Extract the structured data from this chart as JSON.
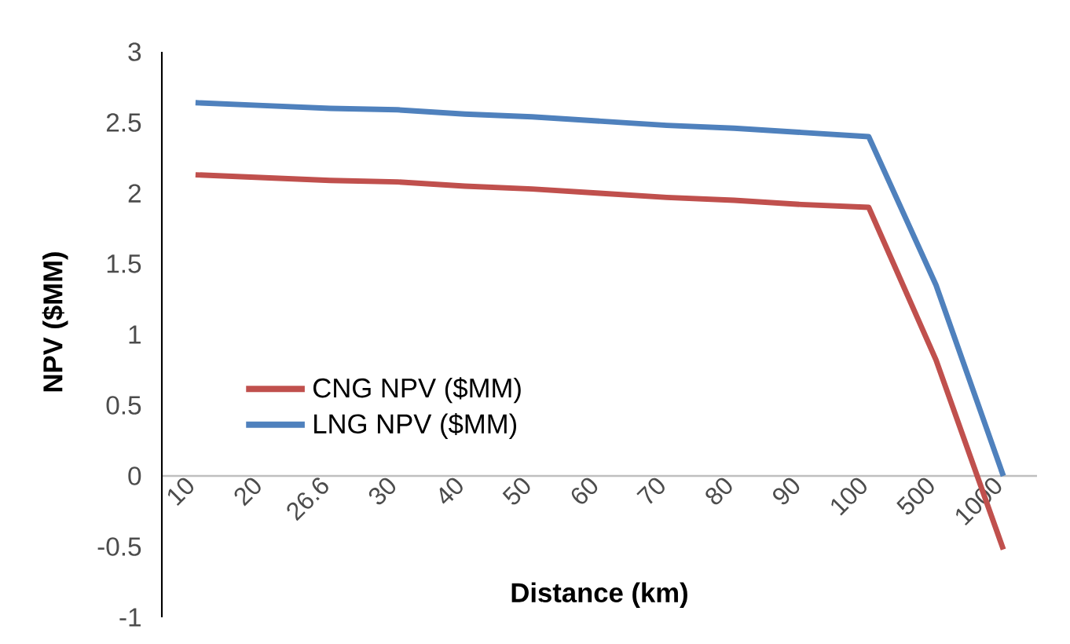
{
  "chart_data": {
    "type": "line",
    "xlabel": "Distance (km)",
    "ylabel": "NPV ($MM)",
    "categories": [
      "10",
      "20",
      "26.6",
      "30",
      "40",
      "50",
      "60",
      "70",
      "80",
      "90",
      "100",
      "500",
      "1000"
    ],
    "series": [
      {
        "name": "CNG NPV ($MM)",
        "color": "#c0504d",
        "values": [
          2.13,
          2.11,
          2.09,
          2.08,
          2.05,
          2.03,
          2.0,
          1.97,
          1.95,
          1.92,
          1.9,
          0.82,
          -0.52
        ]
      },
      {
        "name": "LNG NPV ($MM)",
        "color": "#4f81bd",
        "values": [
          2.64,
          2.62,
          2.6,
          2.59,
          2.56,
          2.54,
          2.51,
          2.48,
          2.46,
          2.43,
          2.4,
          1.35,
          0.0
        ]
      }
    ],
    "ylim": [
      -1,
      3
    ],
    "yticks": [
      -1,
      -0.5,
      0,
      0.5,
      1,
      1.5,
      2,
      2.5,
      3
    ],
    "grid": false,
    "legend": "bottom left",
    "marker": "none",
    "line_style": "solid"
  }
}
